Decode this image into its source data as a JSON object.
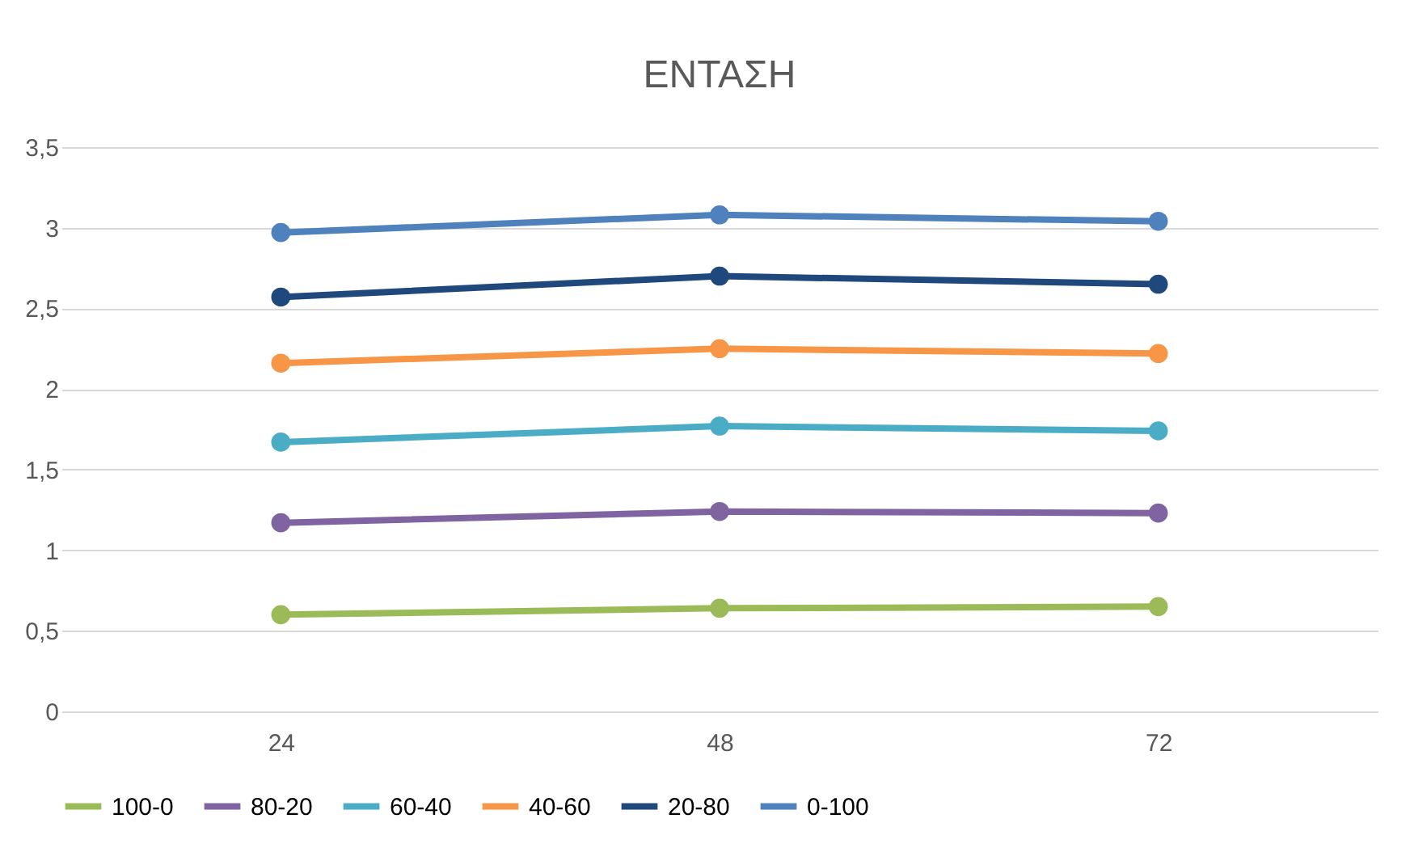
{
  "chart_data": {
    "type": "line",
    "title": "ΕΝΤΑΣΗ",
    "categories": [
      "24",
      "48",
      "72"
    ],
    "series": [
      {
        "name": "100-0",
        "color": "#9bbb59",
        "values": [
          0.6,
          0.64,
          0.65
        ]
      },
      {
        "name": "80-20",
        "color": "#8064a2",
        "values": [
          1.17,
          1.24,
          1.23
        ]
      },
      {
        "name": "60-40",
        "color": "#4bacc6",
        "values": [
          1.67,
          1.77,
          1.74
        ]
      },
      {
        "name": "40-60",
        "color": "#f79646",
        "values": [
          2.16,
          2.25,
          2.22
        ]
      },
      {
        "name": "20-80",
        "color": "#1f497d",
        "values": [
          2.57,
          2.7,
          2.65
        ]
      },
      {
        "name": "0-100",
        "color": "#4f81bd",
        "values": [
          2.97,
          3.08,
          3.04
        ]
      }
    ],
    "ylim": [
      0,
      3.5
    ],
    "yticks": [
      {
        "value": 0,
        "label": "0"
      },
      {
        "value": 0.5,
        "label": "0,5"
      },
      {
        "value": 1,
        "label": "1"
      },
      {
        "value": 1.5,
        "label": "1,5"
      },
      {
        "value": 2,
        "label": "2"
      },
      {
        "value": 2.5,
        "label": "2,5"
      },
      {
        "value": 3,
        "label": "3"
      },
      {
        "value": 3.5,
        "label": "3,5"
      }
    ],
    "grid": "y",
    "legend": "bottom",
    "marker": "circle",
    "line_style": "solid"
  }
}
